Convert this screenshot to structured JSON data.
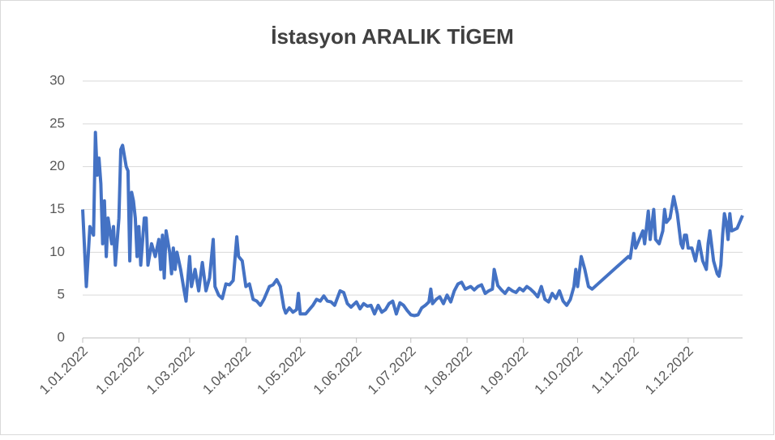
{
  "chart_data": {
    "type": "line",
    "title": "İstasyon ARALIK TİGEM",
    "x": [
      "1.01.2022",
      "3.01.2022",
      "5.01.2022",
      "7.01.2022",
      "8.01.2022",
      "9.01.2022",
      "10.01.2022",
      "11.01.2022",
      "12.01.2022",
      "13.01.2022",
      "14.01.2022",
      "15.01.2022",
      "17.01.2022",
      "18.01.2022",
      "19.01.2022",
      "21.01.2022",
      "22.01.2022",
      "23.01.2022",
      "25.01.2022",
      "26.01.2022",
      "27.01.2022",
      "28.01.2022",
      "29.01.2022",
      "30.01.2022",
      "31.01.2022",
      "1.02.2022",
      "2.02.2022",
      "4.02.2022",
      "5.02.2022",
      "6.02.2022",
      "8.02.2022",
      "10.02.2022",
      "12.02.2022",
      "13.02.2022",
      "14.02.2022",
      "15.02.2022",
      "16.02.2022",
      "18.02.2022",
      "19.02.2022",
      "20.02.2022",
      "21.02.2022",
      "22.02.2022",
      "24.02.2022",
      "26.02.2022",
      "27.02.2022",
      "1.03.2022",
      "2.03.2022",
      "4.03.2022",
      "6.03.2022",
      "8.03.2022",
      "10.03.2022",
      "12.03.2022",
      "14.03.2022",
      "15.03.2022",
      "17.03.2022",
      "19.03.2022",
      "21.03.2022",
      "23.03.2022",
      "25.03.2022",
      "27.03.2022",
      "28.03.2022",
      "30.03.2022",
      "1.04.2022",
      "3.04.2022",
      "5.04.2022",
      "7.04.2022",
      "9.04.2022",
      "11.04.2022",
      "14.04.2022",
      "16.04.2022",
      "18.04.2022",
      "20.04.2022",
      "22.04.2022",
      "23.04.2022",
      "25.04.2022",
      "27.04.2022",
      "29.04.2022",
      "30.04.2022",
      "1.05.2022",
      "4.05.2022",
      "6.05.2022",
      "8.05.2022",
      "10.05.2022",
      "12.05.2022",
      "14.05.2022",
      "16.05.2022",
      "18.05.2022",
      "20.05.2022",
      "23.05.2022",
      "25.05.2022",
      "27.05.2022",
      "29.05.2022",
      "1.06.2022",
      "3.06.2022",
      "5.06.2022",
      "7.06.2022",
      "9.06.2022",
      "11.06.2022",
      "13.06.2022",
      "15.06.2022",
      "17.06.2022",
      "19.06.2022",
      "21.06.2022",
      "23.06.2022",
      "25.06.2022",
      "27.06.2022",
      "29.06.2022",
      "1.07.2022",
      "3.07.2022",
      "5.07.2022",
      "7.07.2022",
      "9.07.2022",
      "11.07.2022",
      "12.07.2022",
      "13.07.2022",
      "15.07.2022",
      "17.07.2022",
      "19.07.2022",
      "21.07.2022",
      "23.07.2022",
      "25.07.2022",
      "27.07.2022",
      "29.07.2022",
      "31.07.2022",
      "3.08.2022",
      "5.08.2022",
      "7.08.2022",
      "9.08.2022",
      "11.08.2022",
      "13.08.2022",
      "15.08.2022",
      "16.08.2022",
      "18.08.2022",
      "20.08.2022",
      "22.08.2022",
      "24.08.2022",
      "26.08.2022",
      "28.08.2022",
      "30.08.2022",
      "1.09.2022",
      "3.09.2022",
      "5.09.2022",
      "7.09.2022",
      "9.09.2022",
      "11.09.2022",
      "13.09.2022",
      "15.09.2022",
      "17.09.2022",
      "19.09.2022",
      "21.09.2022",
      "23.09.2022",
      "25.09.2022",
      "27.09.2022",
      "29.09.2022",
      "30.09.2022",
      "1.10.2022",
      "3.10.2022",
      "5.10.2022",
      "7.10.2022",
      "9.10.2022",
      "29.10.2022",
      "30.10.2022",
      "1.11.2022",
      "2.11.2022",
      "4.11.2022",
      "6.11.2022",
      "7.11.2022",
      "9.11.2022",
      "10.11.2022",
      "12.11.2022",
      "13.11.2022",
      "15.11.2022",
      "17.11.2022",
      "18.11.2022",
      "19.11.2022",
      "21.11.2022",
      "23.11.2022",
      "25.11.2022",
      "27.11.2022",
      "28.11.2022",
      "29.11.2022",
      "30.11.2022",
      "1.12.2022",
      "3.12.2022",
      "5.12.2022",
      "7.12.2022",
      "9.12.2022",
      "11.12.2022",
      "12.12.2022",
      "13.12.2022",
      "15.12.2022",
      "17.12.2022",
      "18.12.2022",
      "19.12.2022",
      "20.12.2022",
      "21.12.2022",
      "22.12.2022",
      "23.12.2022",
      "24.12.2022",
      "25.12.2022",
      "28.12.2022",
      "31.12.2022"
    ],
    "series": [
      {
        "color": "#4472c4",
        "values": [
          15,
          6,
          13,
          12,
          24,
          19,
          21,
          18,
          11,
          16,
          9.5,
          14,
          11,
          13,
          8.5,
          14,
          22,
          22.5,
          20,
          19.5,
          9,
          17,
          16,
          14,
          9.5,
          13,
          8.5,
          14,
          14,
          8.5,
          11,
          9.5,
          11.5,
          8,
          12,
          7,
          12.5,
          10,
          7.5,
          10.5,
          8,
          10,
          8,
          5.5,
          4.3,
          9.5,
          6,
          8,
          5.5,
          8.8,
          5.5,
          7,
          11.5,
          6,
          5,
          4.6,
          6.3,
          6.2,
          6.7,
          11.8,
          9.5,
          9,
          6,
          6.3,
          4.5,
          4.3,
          3.8,
          4.5,
          6,
          6.2,
          6.8,
          6,
          3.5,
          2.9,
          3.5,
          3,
          3.3,
          5.2,
          2.8,
          2.8,
          3.3,
          3.8,
          4.5,
          4.3,
          4.9,
          4.3,
          4.2,
          3.8,
          5.5,
          5.3,
          4,
          3.6,
          4.2,
          3.4,
          4,
          3.7,
          3.8,
          2.8,
          3.8,
          3,
          3.3,
          4,
          4.3,
          2.8,
          4.1,
          3.8,
          3.2,
          2.7,
          2.6,
          2.7,
          3.5,
          3.8,
          4.2,
          5.7,
          4,
          4.5,
          4.8,
          4,
          5,
          4.2,
          5.5,
          6.3,
          6.5,
          5.7,
          6,
          5.6,
          6,
          6.2,
          5.2,
          5.5,
          5.7,
          8,
          6.1,
          5.6,
          5.2,
          5.8,
          5.5,
          5.3,
          5.8,
          5.5,
          6,
          5.7,
          5.3,
          4.8,
          6,
          4.5,
          4.2,
          5.2,
          4.6,
          5.5,
          4.3,
          3.8,
          4.5,
          6,
          8,
          6,
          9.5,
          8,
          6,
          5.7,
          9.5,
          9.3,
          12.2,
          10.5,
          11.5,
          12.5,
          11,
          14.8,
          11.5,
          15,
          11.5,
          11,
          12.5,
          15,
          13.5,
          14,
          16.5,
          14.5,
          11,
          10.5,
          12,
          12,
          10.5,
          10.5,
          9,
          11.3,
          9,
          8,
          11,
          12.5,
          9,
          7.5,
          7.2,
          8.5,
          12,
          14.5,
          13.5,
          11.5,
          14.5,
          12.5,
          12.8,
          14.3
        ]
      }
    ],
    "xlim": [
      "1.01.2022",
      "31.12.2022"
    ],
    "xticks": [
      "1.01.2022",
      "1.02.2022",
      "1.03.2022",
      "1.04.2022",
      "1.05.2022",
      "1.06.2022",
      "1.07.2022",
      "1.08.2022",
      "1.09.2022",
      "1.10.2022",
      "1.11.2022",
      "1.12.2022"
    ],
    "ylim": [
      0,
      30
    ],
    "yticks": [
      0,
      5,
      10,
      15,
      20,
      25,
      30
    ],
    "grid": true
  }
}
